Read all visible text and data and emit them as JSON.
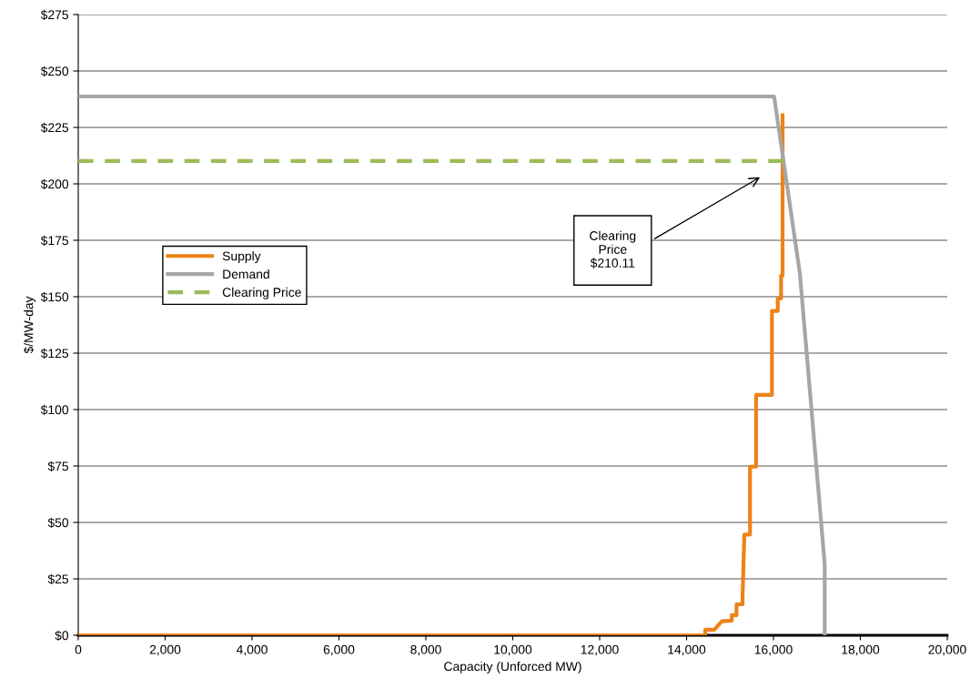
{
  "chart_data": {
    "type": "line",
    "xlabel": "Capacity (Unforced MW)",
    "ylabel": "$/MW-day",
    "xlim": [
      0,
      20000
    ],
    "xticks": [
      {
        "value": 0,
        "label": "0"
      },
      {
        "value": 2000,
        "label": "2,000"
      },
      {
        "value": 4000,
        "label": "4,000"
      },
      {
        "value": 6000,
        "label": "6,000"
      },
      {
        "value": 8000,
        "label": "8,000"
      },
      {
        "value": 10000,
        "label": "10,000"
      },
      {
        "value": 12000,
        "label": "12,000"
      },
      {
        "value": 14000,
        "label": "14,000"
      },
      {
        "value": 16000,
        "label": "16,000"
      },
      {
        "value": 18000,
        "label": "18,000"
      },
      {
        "value": 20000,
        "label": "20,000"
      }
    ],
    "ylim": [
      0,
      275
    ],
    "yticks": [
      {
        "value": 0,
        "label": "$0"
      },
      {
        "value": 25,
        "label": "$25"
      },
      {
        "value": 50,
        "label": "$50"
      },
      {
        "value": 75,
        "label": "$75"
      },
      {
        "value": 100,
        "label": "$100"
      },
      {
        "value": 125,
        "label": "$125"
      },
      {
        "value": 150,
        "label": "$150"
      },
      {
        "value": 175,
        "label": "$175"
      },
      {
        "value": 200,
        "label": "$200"
      },
      {
        "value": 225,
        "label": "$225"
      },
      {
        "value": 250,
        "label": "$250"
      },
      {
        "value": 275,
        "label": "$275"
      }
    ],
    "grid": "y",
    "legend": "center left",
    "marker": "none",
    "series": [
      {
        "name": "Supply",
        "color": "#ee8218",
        "line_style": "solid",
        "x": [
          0,
          14430,
          14430,
          14640,
          14810,
          15040,
          15040,
          15150,
          15150,
          15290,
          15290,
          15330,
          15330,
          15460,
          15460,
          15600,
          15600,
          15950,
          15965,
          15965,
          16100,
          16100,
          16175,
          16175,
          16210,
          16210
        ],
        "values": [
          0,
          0,
          2.5,
          2.5,
          6.2,
          6.5,
          8.9,
          8.9,
          13.7,
          13.7,
          17.3,
          44.6,
          44.6,
          44.6,
          74.7,
          74.7,
          106.5,
          106.5,
          106.5,
          143.7,
          143.7,
          149.2,
          149.2,
          159.3,
          159.3,
          230.4
        ]
      },
      {
        "name": "Demand",
        "color": "#a6a6a6",
        "line_style": "solid",
        "x": [
          0,
          16015,
          16607,
          17180,
          17180
        ],
        "values": [
          238.7,
          238.7,
          160.5,
          31.5,
          0
        ]
      },
      {
        "name": "Clearing Price",
        "color": "#9bbb59",
        "line_style": "dashed",
        "x": [
          0,
          16230
        ],
        "values": [
          210.11,
          210.11
        ]
      }
    ],
    "annotations": [
      "Clearing\nPrice\n$210.11"
    ]
  }
}
